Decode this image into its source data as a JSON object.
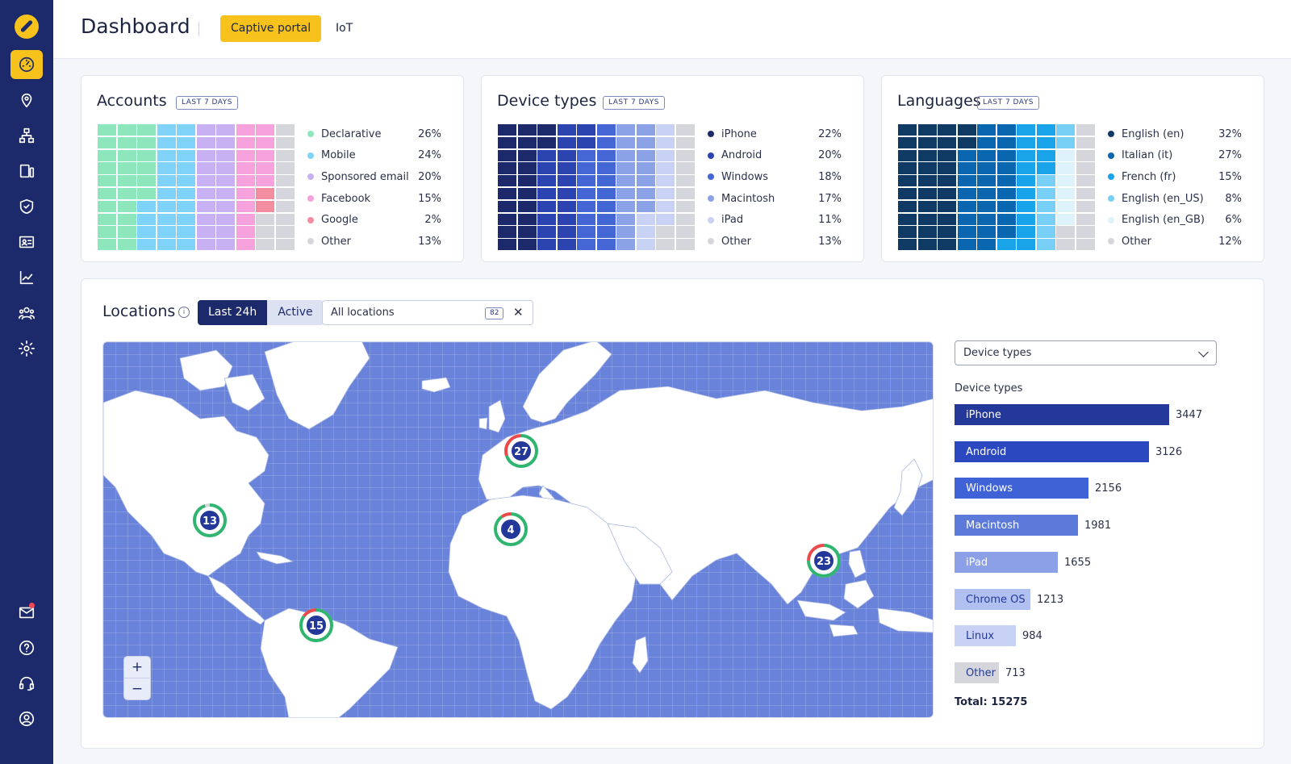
{
  "header": {
    "title": "Dashboard",
    "tabs": [
      {
        "label": "Captive portal",
        "active": true
      },
      {
        "label": "IoT",
        "active": false
      }
    ]
  },
  "sidebar": {
    "items": [
      {
        "icon": "gauge-icon",
        "active": true
      },
      {
        "icon": "location-pin-icon"
      },
      {
        "icon": "network-icon"
      },
      {
        "icon": "devices-icon"
      },
      {
        "icon": "shield-icon"
      },
      {
        "icon": "id-card-icon"
      },
      {
        "icon": "line-chart-icon"
      },
      {
        "icon": "users-icon"
      },
      {
        "icon": "gear-icon"
      }
    ],
    "bottom_items": [
      {
        "icon": "mail-icon",
        "notification": true
      },
      {
        "icon": "help-icon"
      },
      {
        "icon": "headset-icon"
      },
      {
        "icon": "user-circle-icon"
      }
    ]
  },
  "accounts": {
    "title": "Accounts",
    "badge": "LAST 7 DAYS",
    "items": [
      {
        "label": "Declarative",
        "value": "26%",
        "pct": 26,
        "color": "#8ee6bd"
      },
      {
        "label": "Mobile",
        "value": "24%",
        "pct": 24,
        "color": "#7fd3f8"
      },
      {
        "label": "Sponsored email",
        "value": "20%",
        "pct": 20,
        "color": "#c7b1f3"
      },
      {
        "label": "Facebook",
        "value": "15%",
        "pct": 15,
        "color": "#f7a2dc"
      },
      {
        "label": "Google",
        "value": "2%",
        "pct": 2,
        "color": "#f58da1"
      },
      {
        "label": "Other",
        "value": "13%",
        "pct": 13,
        "color": "#d4d6dc"
      }
    ]
  },
  "device_types": {
    "title": "Device types",
    "badge": "LAST 7 DAYS",
    "items": [
      {
        "label": "iPhone",
        "value": "22%",
        "pct": 22,
        "color": "#1c2a6b"
      },
      {
        "label": "Android",
        "value": "20%",
        "pct": 20,
        "color": "#2b44b0"
      },
      {
        "label": "Windows",
        "value": "18%",
        "pct": 18,
        "color": "#4567d6"
      },
      {
        "label": "Macintosh",
        "value": "17%",
        "pct": 17,
        "color": "#8ba3e6"
      },
      {
        "label": "iPad",
        "value": "11%",
        "pct": 11,
        "color": "#c7d2f5"
      },
      {
        "label": "Other",
        "value": "13%",
        "pct": 13,
        "color": "#d4d6dc"
      }
    ]
  },
  "languages": {
    "title": "Languages",
    "badge": "LAST 7 DAYS",
    "items": [
      {
        "label": "English (en)",
        "value": "32%",
        "pct": 32,
        "color": "#0f3a63"
      },
      {
        "label": "Italian (it)",
        "value": "27%",
        "pct": 27,
        "color": "#0b66b0"
      },
      {
        "label": "French (fr)",
        "value": "15%",
        "pct": 15,
        "color": "#19a3e8"
      },
      {
        "label": "English (en_US)",
        "value": "8%",
        "pct": 8,
        "color": "#78cff5"
      },
      {
        "label": "English (en_GB)",
        "value": "6%",
        "pct": 6,
        "color": "#def2fc"
      },
      {
        "label": "Other",
        "value": "12%",
        "pct": 12,
        "color": "#d4d6dc"
      }
    ]
  },
  "locations": {
    "title": "Locations",
    "segments": [
      "Last 24h",
      "Active"
    ],
    "active_segment": "Last 24h",
    "filter": {
      "label": "All locations",
      "count": "82"
    },
    "zoom_in": "+",
    "zoom_out": "−",
    "clusters": [
      {
        "count": "27",
        "green": 0.7,
        "red": 0.3
      },
      {
        "count": "13",
        "green": 0.95,
        "red": 0.0
      },
      {
        "count": "4",
        "green": 0.9,
        "red": 0.1
      },
      {
        "count": "23",
        "green": 0.75,
        "red": 0.25
      },
      {
        "count": "15",
        "green": 0.85,
        "red": 0.15
      }
    ]
  },
  "breakdown": {
    "select_value": "Device types",
    "title": "Device types",
    "max": 3447,
    "items": [
      {
        "label": "iPhone",
        "value": "3447",
        "color": "#24389a",
        "text": "#ffffff"
      },
      {
        "label": "Android",
        "value": "3126",
        "color": "#2b48c0",
        "text": "#ffffff"
      },
      {
        "label": "Windows",
        "value": "2156",
        "color": "#3f62d6",
        "text": "#ffffff"
      },
      {
        "label": "Macintosh",
        "value": "1981",
        "color": "#5c7ad9",
        "text": "#ffffff"
      },
      {
        "label": "iPad",
        "value": "1655",
        "color": "#8ba0e6",
        "text": "#ffffff"
      },
      {
        "label": "Chrome OS",
        "value": "1213",
        "color": "#b0c0f0",
        "text": "#24389a"
      },
      {
        "label": "Linux",
        "value": "984",
        "color": "#c7d2f5",
        "text": "#24389a"
      },
      {
        "label": "Other",
        "value": "713",
        "color": "#d4d6dc",
        "text": "#24389a"
      }
    ],
    "total": "Total: 15275"
  }
}
